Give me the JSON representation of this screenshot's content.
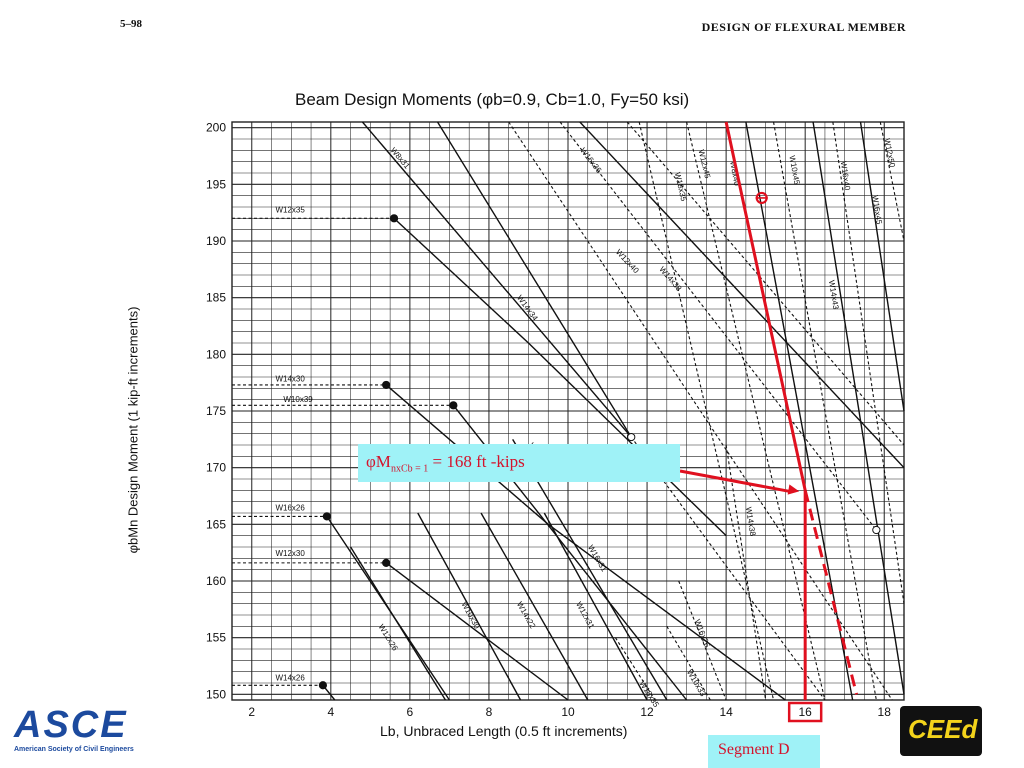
{
  "header": {
    "page_number": "5–98",
    "section_title": "DESIGN OF FLEXURAL MEMBER"
  },
  "callout": {
    "prefix": "φM",
    "subscript": "nxCb = 1",
    "value_text": " = 168 ft -kips"
  },
  "segment_label": "Segment D",
  "logos": {
    "asce_text": "ASCE",
    "asce_caption": "American Society of Civil Engineers",
    "ceed_text": "CEEd"
  },
  "colors": {
    "annotation_red": "#e0101f",
    "callout_bg": "#9ff2f7",
    "grid": "#222222",
    "asce_blue": "#1c4a9e",
    "ceed_yellow": "#f3d31b"
  },
  "chart_data": {
    "type": "line",
    "title": "Beam Design Moments (φb=0.9, Cb=1.0, Fy=50 ksi)",
    "xlabel": "Lb, Unbraced Length (0.5 ft increments)",
    "ylabel": "φbMn Design Moment (1 kip-ft increments)",
    "xlim": [
      1.5,
      18.5
    ],
    "ylim": [
      149.5,
      200.5
    ],
    "xticks": [
      2,
      4,
      6,
      8,
      10,
      12,
      14,
      16,
      18
    ],
    "yticks": [
      150,
      155,
      160,
      165,
      170,
      175,
      180,
      185,
      190,
      195,
      200
    ],
    "grid": true,
    "highlighted_x_tick": 16,
    "design_point": {
      "x": 16,
      "y": 168
    },
    "annotation_line": {
      "x": [
        14.0,
        16.0,
        17.3
      ],
      "y": [
        200.5,
        168,
        150
      ]
    },
    "marked_point": {
      "x": 14.9,
      "y": 193.8
    },
    "series": [
      {
        "name": "W12x35",
        "label_pos": [
          2.6,
          192.5
        ],
        "x": [
          1.5,
          5.6,
          9.0,
          14.0
        ],
        "y": [
          192.0,
          192.0,
          181.0,
          164.0
        ],
        "styles": [
          "dash",
          "solid",
          "solid"
        ],
        "marker": "filled"
      },
      {
        "name": "W14x30",
        "label_pos": [
          2.6,
          177.6
        ],
        "x": [
          1.5,
          5.4,
          9.5,
          15.5
        ],
        "y": [
          177.3,
          177.3,
          165.0,
          149.5
        ],
        "styles": [
          "dash",
          "solid",
          "solid"
        ],
        "marker": "filled"
      },
      {
        "name": "W10x39",
        "label_pos": [
          2.8,
          175.8
        ],
        "x": [
          1.5,
          7.1,
          13.0
        ],
        "y": [
          175.5,
          175.5,
          149.5
        ],
        "styles": [
          "dash",
          "solid"
        ],
        "marker": "filled"
      },
      {
        "name": "W16x26",
        "label_pos": [
          2.6,
          166.2
        ],
        "x": [
          1.5,
          3.9,
          7.0
        ],
        "y": [
          165.7,
          165.7,
          149.5
        ],
        "styles": [
          "dash",
          "solid"
        ],
        "marker": "filled"
      },
      {
        "name": "W12x30",
        "label_pos": [
          2.6,
          162.2
        ],
        "x": [
          1.5,
          5.4,
          10.0
        ],
        "y": [
          161.6,
          161.6,
          149.5
        ],
        "styles": [
          "dash",
          "solid"
        ],
        "marker": "filled"
      },
      {
        "name": "W14x26",
        "label_pos": [
          2.6,
          151.2
        ],
        "x": [
          1.5,
          3.8,
          4.1
        ],
        "y": [
          150.8,
          150.8,
          149.5
        ],
        "styles": [
          "dash",
          "solid"
        ],
        "marker": "filled"
      },
      {
        "name": "W8x31",
        "label_pos": [
          5.5,
          198.0
        ],
        "x": [
          4.8,
          11.6
        ],
        "y": [
          200.5,
          172.7
        ],
        "styles": [
          "solid"
        ],
        "marker": "none"
      },
      {
        "name": "W14x34",
        "label_pos": [
          8.7,
          185.0
        ],
        "x": [
          6.7,
          11.6,
          16.5
        ],
        "y": [
          200.5,
          172.7,
          149.5
        ],
        "styles": [
          "solid",
          "dash"
        ],
        "marker": "open"
      },
      {
        "name": "W10x35",
        "label_pos": [
          9.0,
          172.0
        ],
        "x": [
          8.5,
          18.2
        ],
        "y": [
          200.5,
          149.5
        ],
        "styles": [
          "dash"
        ],
        "marker": "none"
      },
      {
        "name": "W16x36",
        "label_pos": [
          10.3,
          198.0
        ],
        "x": [
          9.8,
          17.8
        ],
        "y": [
          200.5,
          164.5
        ],
        "styles": [
          "dash"
        ],
        "marker": "open"
      },
      {
        "name": "W12x40",
        "label_pos": [
          11.2,
          189.0
        ],
        "x": [
          10.3,
          18.5
        ],
        "y": [
          200.5,
          170.0
        ],
        "styles": [
          "solid"
        ],
        "marker": "none"
      },
      {
        "name": "W14x38",
        "label_pos": [
          12.3,
          187.5
        ],
        "x": [
          11.5,
          18.5
        ],
        "y": [
          200.5,
          172.0
        ],
        "styles": [
          "dash"
        ],
        "marker": "none"
      },
      {
        "name": "W18x35",
        "label_pos": [
          12.7,
          196.0
        ],
        "x": [
          11.8,
          15.2
        ],
        "y": [
          200.5,
          149.5
        ],
        "styles": [
          "dash"
        ],
        "marker": "none"
      },
      {
        "name": "W12x45",
        "label_pos": [
          13.3,
          198.0
        ],
        "x": [
          13.0,
          16.5
        ],
        "y": [
          200.5,
          149.5
        ],
        "styles": [
          "dash"
        ],
        "marker": "none"
      },
      {
        "name": "W8x40",
        "label_pos": [
          14.1,
          197.0
        ],
        "x": [
          14.5,
          17.2
        ],
        "y": [
          200.5,
          149.5
        ],
        "styles": [
          "solid"
        ],
        "marker": "none"
      },
      {
        "name": "W10x45",
        "label_pos": [
          15.6,
          197.5
        ],
        "x": [
          15.2,
          17.8
        ],
        "y": [
          200.5,
          149.5
        ],
        "styles": [
          "dash"
        ],
        "marker": "none"
      },
      {
        "name": "W14x43",
        "label_pos": [
          16.6,
          186.5
        ],
        "x": [
          16.2,
          18.5
        ],
        "y": [
          200.5,
          150.0
        ],
        "styles": [
          "solid"
        ],
        "marker": "none"
      },
      {
        "name": "W16x40",
        "label_pos": [
          16.9,
          197.0
        ],
        "x": [
          16.7,
          18.5
        ],
        "y": [
          200.5,
          158.0
        ],
        "styles": [
          "dash"
        ],
        "marker": "none"
      },
      {
        "name": "W16x45",
        "label_pos": [
          17.7,
          194.0
        ],
        "x": [
          17.4,
          18.5
        ],
        "y": [
          200.5,
          175.0
        ],
        "styles": [
          "solid"
        ],
        "marker": "none"
      },
      {
        "name": "W12x50",
        "label_pos": [
          18.0,
          199.0
        ],
        "x": [
          17.9,
          18.5
        ],
        "y": [
          200.5,
          190.0
        ],
        "styles": [
          "dash"
        ],
        "marker": "none"
      },
      {
        "name": "W16x31",
        "label_pos": [
          10.5,
          163.0
        ],
        "x": [
          8.6,
          12.5
        ],
        "y": [
          172.5,
          149.5
        ],
        "styles": [
          "solid"
        ],
        "marker": "none"
      },
      {
        "name": "W12x26",
        "label_pos": [
          5.2,
          156.0
        ],
        "x": [
          4.5,
          6.9
        ],
        "y": [
          163.0,
          149.5
        ],
        "styles": [
          "solid"
        ],
        "marker": "none"
      },
      {
        "name": "W10x30",
        "label_pos": [
          7.3,
          158.0
        ],
        "x": [
          6.2,
          8.8
        ],
        "y": [
          166.0,
          149.5
        ],
        "styles": [
          "solid"
        ],
        "marker": "none"
      },
      {
        "name": "W14x22",
        "label_pos": [
          8.7,
          158.0
        ],
        "x": [
          7.8,
          10.5
        ],
        "y": [
          166.0,
          149.5
        ],
        "styles": [
          "solid"
        ],
        "marker": "none"
      },
      {
        "name": "W12x31",
        "label_pos": [
          10.2,
          158.0
        ],
        "x": [
          9.4,
          12.0
        ],
        "y": [
          166.0,
          149.5
        ],
        "styles": [
          "solid"
        ],
        "marker": "none"
      },
      {
        "name": "W18x35",
        "label_pos": [
          11.8,
          151.0
        ],
        "x": [
          11.2,
          12.2
        ],
        "y": [
          155.0,
          149.5
        ],
        "styles": [
          "dash"
        ],
        "marker": "none"
      },
      {
        "name": "W10x33",
        "label_pos": [
          13.0,
          152.0
        ],
        "x": [
          12.5,
          13.6
        ],
        "y": [
          156.0,
          149.5
        ],
        "styles": [
          "dash"
        ],
        "marker": "none"
      },
      {
        "name": "W16x26",
        "label_pos": [
          13.2,
          156.5
        ],
        "x": [
          12.8,
          14.0
        ],
        "y": [
          160.0,
          149.5
        ],
        "styles": [
          "dash"
        ],
        "marker": "none"
      },
      {
        "name": "W14x38",
        "label_pos": [
          14.5,
          166.5
        ],
        "x": [
          14.0,
          15.0
        ],
        "y": [
          172.0,
          149.5
        ],
        "styles": [
          "dash"
        ],
        "marker": "none"
      }
    ]
  }
}
